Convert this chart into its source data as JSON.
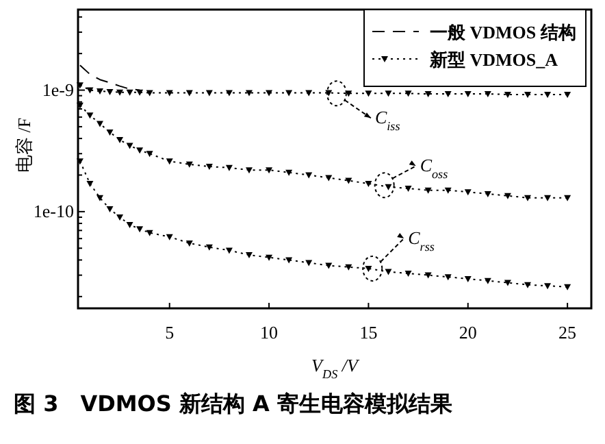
{
  "chart_data": {
    "type": "line",
    "xlabel": "V$_{DS}$ /V",
    "ylabel": "电容 /F",
    "log": "y",
    "legend": "top right",
    "x": [
      0.5,
      1,
      1.5,
      2,
      2.5,
      3,
      3.5,
      4,
      5,
      6,
      7,
      8,
      9,
      10,
      11,
      12,
      13,
      14,
      15,
      16,
      17,
      18,
      19,
      20,
      21,
      22,
      23,
      24,
      25
    ],
    "xlim": [
      0.4,
      26.2
    ],
    "xticks": [
      5,
      10,
      15,
      20,
      25
    ],
    "ylim": [
      1.6e-11,
      4.6e-09
    ],
    "yticks": [
      {
        "value": 2e-11,
        "label": null
      },
      {
        "value": 3e-11,
        "label": null
      },
      {
        "value": 4e-11,
        "label": null
      },
      {
        "value": 5e-11,
        "label": null
      },
      {
        "value": 6e-11,
        "label": null
      },
      {
        "value": 7e-11,
        "label": null
      },
      {
        "value": 8e-11,
        "label": null
      },
      {
        "value": 9e-11,
        "label": null
      },
      {
        "value": 1e-10,
        "label": "1e-10"
      },
      {
        "value": 2e-10,
        "label": null
      },
      {
        "value": 3e-10,
        "label": null
      },
      {
        "value": 4e-10,
        "label": null
      },
      {
        "value": 5e-10,
        "label": null
      },
      {
        "value": 6e-10,
        "label": null
      },
      {
        "value": 7e-10,
        "label": null
      },
      {
        "value": 8e-10,
        "label": null
      },
      {
        "value": 9e-10,
        "label": null
      },
      {
        "value": 1e-09,
        "label": "1e-9"
      },
      {
        "value": 2e-09,
        "label": null
      },
      {
        "value": 3e-09,
        "label": null
      },
      {
        "value": 4e-09,
        "label": null
      }
    ],
    "series": [
      {
        "name": "一般 VDMOS 结构",
        "color": "#000000",
        "line_style": "dashed",
        "marker": "none",
        "values": [
          1.6e-09,
          1.35e-09,
          1.22e-09,
          1.15e-09,
          1.08e-09,
          1.02e-09,
          1e-09,
          null,
          null,
          null,
          null,
          null,
          null,
          null,
          null,
          null,
          null,
          null,
          null,
          null,
          null,
          null,
          null,
          null,
          null,
          null,
          null,
          null,
          null
        ]
      },
      {
        "name": "新型 VDMOS_A",
        "color": "#000000",
        "line_style": "dotted",
        "marker": "triangle",
        "values": [
          1.1e-09,
          1e-09,
          9.8e-10,
          9.7e-10,
          9.6e-10,
          9.6e-10,
          9.6e-10,
          9.5e-10,
          9.5e-10,
          9.5e-10,
          9.5e-10,
          9.5e-10,
          9.5e-10,
          9.5e-10,
          9.5e-10,
          9.5e-10,
          9.5e-10,
          9.4e-10,
          9.4e-10,
          9.4e-10,
          9.4e-10,
          9.3e-10,
          9.3e-10,
          9.3e-10,
          9.3e-10,
          9.2e-10,
          9.2e-10,
          9.2e-10,
          9.2e-10
        ]
      },
      {
        "color": "#000000",
        "line_style": "dotted",
        "marker": "triangle",
        "values": [
          7.5e-10,
          6.2e-10,
          5.3e-10,
          4.5e-10,
          3.9e-10,
          3.5e-10,
          3.2e-10,
          3e-10,
          2.6e-10,
          2.45e-10,
          2.35e-10,
          2.3e-10,
          2.2e-10,
          2.2e-10,
          2.1e-10,
          2e-10,
          1.9e-10,
          1.8e-10,
          1.7e-10,
          1.6e-10,
          1.55e-10,
          1.5e-10,
          1.5e-10,
          1.45e-10,
          1.4e-10,
          1.35e-10,
          1.3e-10,
          1.3e-10,
          1.3e-10
        ]
      },
      {
        "color": "#000000",
        "line_style": "dotted",
        "marker": "triangle",
        "values": [
          2.6e-10,
          1.7e-10,
          1.3e-10,
          1.05e-10,
          9e-11,
          7.8e-11,
          7.2e-11,
          6.7e-11,
          6.2e-11,
          5.5e-11,
          5.1e-11,
          4.8e-11,
          4.4e-11,
          4.2e-11,
          4e-11,
          3.8e-11,
          3.6e-11,
          3.5e-11,
          3.4e-11,
          3.2e-11,
          3.1e-11,
          3e-11,
          2.9e-11,
          2.8e-11,
          2.7e-11,
          2.6e-11,
          2.5e-11,
          2.45e-11,
          2.4e-11
        ]
      }
    ],
    "annotations": [
      {
        "text": "C$_{iss}$",
        "x": 13.4,
        "y": 9.4e-10
      },
      {
        "text": "C$_{oss}$",
        "x": 15.8,
        "y": 1.65e-10
      },
      {
        "text": "C$_{rss}$",
        "x": 15.2,
        "y": 3.4e-11
      },
      "图 3　VDMOS 新结构 A 寄生电容模拟结果"
    ]
  }
}
